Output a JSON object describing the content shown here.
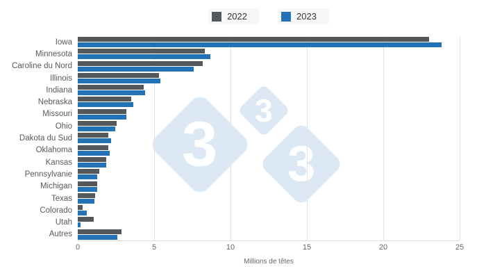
{
  "legend": {
    "items": [
      {
        "label": "2022",
        "color": "#54585b"
      },
      {
        "label": "2023",
        "color": "#2272b5"
      }
    ]
  },
  "watermark": {
    "digit": "3",
    "color": "#dce8f4"
  },
  "chart_data": {
    "type": "bar",
    "orientation": "horizontal",
    "title": "",
    "xlabel": "Millions de têtes",
    "ylabel": "",
    "xlim": [
      0,
      25
    ],
    "xticks": [
      0,
      5,
      10,
      15,
      20,
      25
    ],
    "grid": true,
    "legend_position": "top",
    "categories": [
      "Iowa",
      "Minnesota",
      "Caroline du Nord",
      "Illinois",
      "Indiana",
      "Nebraska",
      "Missouri",
      "Ohio",
      "Dakota du Sud",
      "Oklahoma",
      "Kansas",
      "Pennsylvanie",
      "Michigan",
      "Texas",
      "Colorado",
      "Utah",
      "Autres"
    ],
    "series": [
      {
        "name": "2022",
        "color": "#54585b",
        "values": [
          23.0,
          8.3,
          8.2,
          5.3,
          4.3,
          3.5,
          3.2,
          2.55,
          2.0,
          2.0,
          1.85,
          1.4,
          1.25,
          1.15,
          0.3,
          1.05,
          2.85
        ]
      },
      {
        "name": "2023",
        "color": "#2272b5",
        "values": [
          23.8,
          8.7,
          7.6,
          5.4,
          4.4,
          3.65,
          3.2,
          2.45,
          2.2,
          2.1,
          1.85,
          1.25,
          1.25,
          1.1,
          0.6,
          0.2,
          2.6
        ]
      }
    ]
  }
}
